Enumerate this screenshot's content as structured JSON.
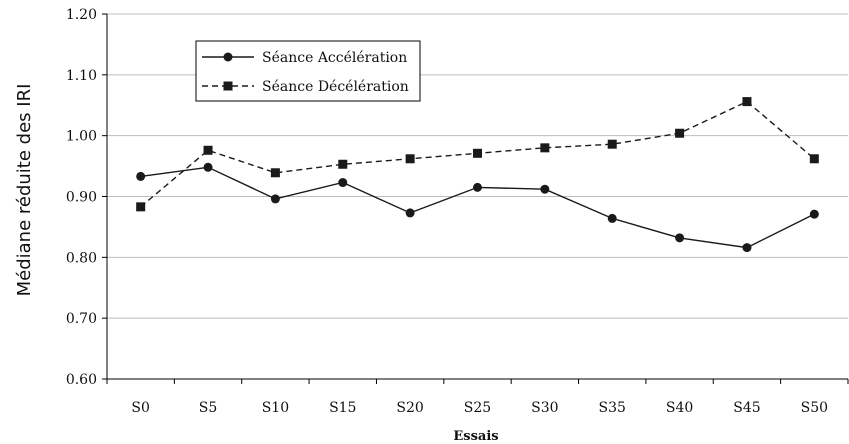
{
  "chart_data": {
    "type": "line",
    "title": "",
    "xlabel": "Essais",
    "ylabel": "Médiane réduite des IRI",
    "categories": [
      "S0",
      "S5",
      "S10",
      "S15",
      "S20",
      "S25",
      "S30",
      "S35",
      "S40",
      "S45",
      "S50"
    ],
    "ylim": [
      0.6,
      1.2
    ],
    "yticks": [
      "0.60",
      "0.70",
      "0.80",
      "0.90",
      "1.00",
      "1.10",
      "1.20"
    ],
    "grid": "horizontal",
    "legend_position": "top-left",
    "series": [
      {
        "name": "Séance Accélération",
        "line_style": "solid",
        "marker": "circle",
        "color": "#1a1a1a",
        "values": [
          0.933,
          0.948,
          0.896,
          0.923,
          0.873,
          0.915,
          0.912,
          0.864,
          0.832,
          0.816,
          0.871
        ]
      },
      {
        "name": "Séance Décélération",
        "line_style": "dashed",
        "marker": "square",
        "color": "#1a1a1a",
        "values": [
          0.883,
          0.976,
          0.939,
          0.953,
          0.962,
          0.971,
          0.98,
          0.986,
          1.004,
          1.056,
          0.962
        ]
      }
    ]
  }
}
